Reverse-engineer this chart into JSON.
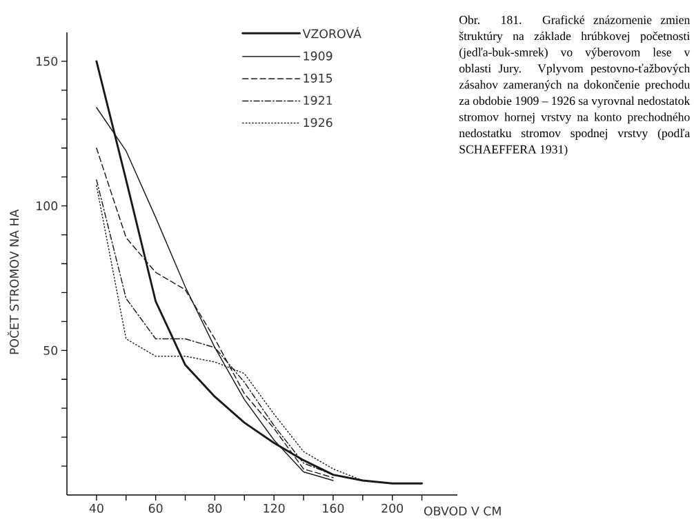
{
  "chart_data": {
    "type": "line",
    "xlabel": "OBVOD V CM",
    "ylabel": "POČET STROMOV NA HA",
    "categories": [
      "40",
      null,
      "60",
      null,
      "80",
      null,
      "120",
      null,
      "160",
      null,
      "200",
      null
    ],
    "ylim": [
      0,
      160
    ],
    "yticks": [
      {
        "value": 10,
        "label": null
      },
      {
        "value": 20,
        "label": null
      },
      {
        "value": 30,
        "label": null
      },
      {
        "value": 40,
        "label": null
      },
      50,
      {
        "value": 60,
        "label": null
      },
      {
        "value": 70,
        "label": null
      },
      {
        "value": 80,
        "label": null
      },
      {
        "value": 90,
        "label": null
      },
      100,
      {
        "value": 110,
        "label": null
      },
      {
        "value": 120,
        "label": null
      },
      {
        "value": 130,
        "label": null
      },
      {
        "value": 140,
        "label": null
      },
      150
    ],
    "legend": "top",
    "marker": "none",
    "grid": false,
    "series": [
      {
        "name": "VZOROVÁ",
        "color": "#1a1a1a",
        "line_style": "solid",
        "values": [
          150,
          109,
          67,
          45,
          34,
          25,
          18,
          12,
          7,
          5,
          4,
          4
        ]
      },
      {
        "name": "1909",
        "color": "#1a1a1a",
        "line_style": "solid",
        "values": [
          134,
          119,
          96,
          72,
          51,
          33,
          19,
          8,
          5,
          null,
          null,
          null
        ]
      },
      {
        "name": "1915",
        "color": "#1a1a1a",
        "line_style": "dashed",
        "values": [
          120,
          89,
          77,
          71,
          54,
          35,
          23,
          9,
          6,
          null,
          null,
          null
        ]
      },
      {
        "name": "1921",
        "color": "#1a1a1a",
        "line_style": "dashdot",
        "values": [
          109,
          68,
          54,
          54,
          51,
          39,
          24,
          11,
          7,
          5,
          null,
          null
        ]
      },
      {
        "name": "1926",
        "color": "#1a1a1a",
        "line_style": "dotted",
        "values": [
          107,
          54,
          48,
          48,
          46,
          42,
          28,
          15,
          9,
          5,
          null,
          null
        ]
      }
    ],
    "annotations": [
      "Obr. 181. Grafické znázornenie zmien štruktúry na základe hrúbkovej početnosti (jedľa-buk-smrek) vo výberovom lese v oblasti Jury. Vplyvom pestovno-ťažbových zásahov zameraných na dokončenie prechodu za obdobie 1909 – 1926 sa vyrovnal nedostatok stromov hornej vrstvy na konto prechodného nedostatku stromov spodnej vrstvy (podľa SCHAEFFERA 1931)"
    ]
  }
}
